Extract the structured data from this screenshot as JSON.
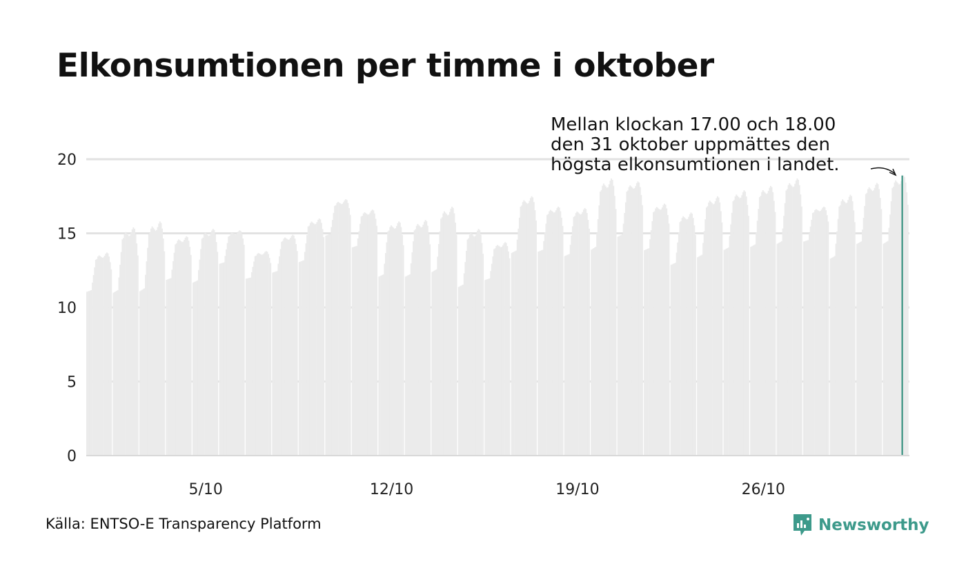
{
  "title": "Elkonsumtionen per timme i oktober",
  "source": "Källa: ENTSO-E Transparency Platform",
  "brand": {
    "name": "Newsworthy",
    "icon": "newsworthy-logo-icon",
    "color": "#3d9a8b"
  },
  "colors": {
    "bars": "#ebebeb",
    "highlight": "#2a8a78",
    "grid": "#e2e2e2",
    "baseline": "#d8d8d8"
  },
  "chart_data": {
    "type": "bar",
    "title": "Elkonsumtionen per timme i oktober",
    "xlabel": "",
    "ylabel": "",
    "ylim": [
      0,
      22
    ],
    "y_ticks": [
      0,
      5,
      10,
      15,
      20
    ],
    "x_ticks": [
      {
        "day": 5,
        "label": "5/10"
      },
      {
        "day": 12,
        "label": "12/10"
      },
      {
        "day": 19,
        "label": "19/10"
      },
      {
        "day": 26,
        "label": "26/10"
      }
    ],
    "grid": true,
    "days": 31,
    "hours_per_day": 24,
    "daily_profile": [
      {
        "day": 1,
        "night": 11.0,
        "peak": 13.7
      },
      {
        "day": 2,
        "night": 10.9,
        "peak": 15.4
      },
      {
        "day": 3,
        "night": 11.0,
        "peak": 15.8
      },
      {
        "day": 4,
        "night": 11.8,
        "peak": 14.8
      },
      {
        "day": 5,
        "night": 11.6,
        "peak": 15.3
      },
      {
        "day": 6,
        "night": 12.9,
        "peak": 15.2
      },
      {
        "day": 7,
        "night": 11.9,
        "peak": 13.8
      },
      {
        "day": 8,
        "night": 12.3,
        "peak": 14.9
      },
      {
        "day": 9,
        "night": 13.0,
        "peak": 16.0
      },
      {
        "day": 10,
        "night": 14.8,
        "peak": 17.3
      },
      {
        "day": 11,
        "night": 14.0,
        "peak": 16.6
      },
      {
        "day": 12,
        "night": 12.0,
        "peak": 15.8
      },
      {
        "day": 13,
        "night": 12.0,
        "peak": 15.9
      },
      {
        "day": 14,
        "night": 12.3,
        "peak": 16.8
      },
      {
        "day": 15,
        "night": 11.3,
        "peak": 15.3
      },
      {
        "day": 16,
        "night": 11.8,
        "peak": 14.4
      },
      {
        "day": 17,
        "night": 13.6,
        "peak": 17.5
      },
      {
        "day": 18,
        "night": 13.7,
        "peak": 16.8
      },
      {
        "day": 19,
        "night": 13.4,
        "peak": 16.7
      },
      {
        "day": 20,
        "night": 13.8,
        "peak": 18.7
      },
      {
        "day": 21,
        "night": 14.7,
        "peak": 18.5
      },
      {
        "day": 22,
        "night": 13.8,
        "peak": 17.0
      },
      {
        "day": 23,
        "night": 12.8,
        "peak": 16.4
      },
      {
        "day": 24,
        "night": 13.3,
        "peak": 17.5
      },
      {
        "day": 25,
        "night": 13.8,
        "peak": 17.9
      },
      {
        "day": 26,
        "night": 14.0,
        "peak": 18.2
      },
      {
        "day": 27,
        "night": 14.2,
        "peak": 18.7
      },
      {
        "day": 28,
        "night": 14.4,
        "peak": 16.8
      },
      {
        "day": 29,
        "night": 13.2,
        "peak": 17.6
      },
      {
        "day": 30,
        "night": 14.2,
        "peak": 18.4
      },
      {
        "day": 31,
        "night": 14.2,
        "peak": 18.9
      }
    ],
    "highlight": {
      "day": 31,
      "hour": 17,
      "value": 18.9
    },
    "annotation": {
      "lines": [
        "Mellan klockan 17.00 och 18.00",
        "den 31 oktober uppmättes den",
        "högsta elkonsumtionen i landet."
      ]
    }
  }
}
